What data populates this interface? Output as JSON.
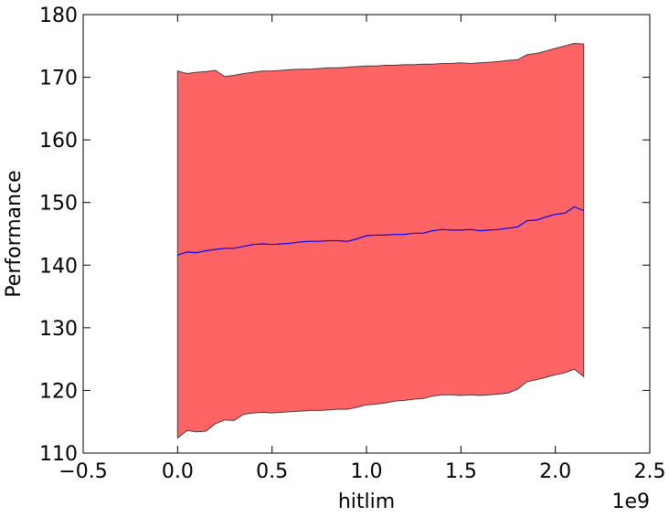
{
  "chart_data": {
    "type": "area",
    "xlabel": "hitlim",
    "ylabel": "Performance",
    "x_offset_label": "1e9",
    "xlim": [
      -0.5,
      2.5
    ],
    "ylim": [
      110,
      180
    ],
    "x_ticks": [
      -0.5,
      0.0,
      0.5,
      1.0,
      1.5,
      2.0,
      2.5
    ],
    "x_tick_labels": [
      "−0.5",
      "0.0",
      "0.5",
      "1.0",
      "1.5",
      "2.0",
      "2.5"
    ],
    "y_ticks": [
      110,
      120,
      130,
      140,
      150,
      160,
      170,
      180
    ],
    "y_tick_labels": [
      "110",
      "120",
      "130",
      "140",
      "150",
      "160",
      "170",
      "180"
    ],
    "grid": false,
    "colors": {
      "band_fill": "#ff6464",
      "band_edge": "#4a3a3a",
      "mean_line": "#0000ff"
    },
    "series": [
      {
        "role": "mean",
        "x": [
          0.0,
          0.05,
          0.1,
          0.15,
          0.2,
          0.25,
          0.3,
          0.35,
          0.4,
          0.45,
          0.5,
          0.55,
          0.6,
          0.65,
          0.7,
          0.75,
          0.8,
          0.85,
          0.9,
          0.95,
          1.0,
          1.05,
          1.1,
          1.15,
          1.2,
          1.25,
          1.3,
          1.35,
          1.4,
          1.45,
          1.5,
          1.55,
          1.6,
          1.65,
          1.7,
          1.75,
          1.8,
          1.85,
          1.9,
          1.95,
          2.0,
          2.05,
          2.1,
          2.15
        ],
        "values": [
          141.6,
          142.1,
          142.0,
          142.3,
          142.5,
          142.7,
          142.7,
          143.0,
          143.3,
          143.4,
          143.3,
          143.4,
          143.5,
          143.7,
          143.8,
          143.8,
          143.9,
          143.9,
          143.8,
          144.2,
          144.7,
          144.8,
          144.8,
          144.9,
          144.9,
          145.1,
          145.1,
          145.5,
          145.7,
          145.6,
          145.6,
          145.7,
          145.5,
          145.6,
          145.7,
          145.9,
          146.1,
          147.1,
          147.2,
          147.7,
          148.1,
          148.3,
          149.3,
          148.7
        ]
      },
      {
        "role": "upper",
        "x": [
          0.0,
          0.05,
          0.1,
          0.15,
          0.2,
          0.25,
          0.3,
          0.35,
          0.4,
          0.45,
          0.5,
          0.55,
          0.6,
          0.65,
          0.7,
          0.75,
          0.8,
          0.85,
          0.9,
          0.95,
          1.0,
          1.05,
          1.1,
          1.15,
          1.2,
          1.25,
          1.3,
          1.35,
          1.4,
          1.45,
          1.5,
          1.55,
          1.6,
          1.65,
          1.7,
          1.75,
          1.8,
          1.85,
          1.9,
          1.95,
          2.0,
          2.05,
          2.1,
          2.15
        ],
        "values": [
          171.0,
          170.6,
          170.8,
          170.9,
          171.1,
          170.1,
          170.3,
          170.6,
          170.8,
          171.0,
          171.0,
          171.1,
          171.2,
          171.3,
          171.3,
          171.4,
          171.5,
          171.5,
          171.6,
          171.7,
          171.8,
          171.8,
          171.9,
          171.9,
          172.0,
          172.0,
          172.1,
          172.1,
          172.2,
          172.2,
          172.3,
          172.2,
          172.3,
          172.4,
          172.5,
          172.7,
          172.8,
          173.6,
          173.8,
          174.2,
          174.6,
          175.0,
          175.4,
          175.3
        ]
      },
      {
        "role": "lower",
        "x": [
          0.0,
          0.05,
          0.1,
          0.15,
          0.2,
          0.25,
          0.3,
          0.35,
          0.4,
          0.45,
          0.5,
          0.55,
          0.6,
          0.65,
          0.7,
          0.75,
          0.8,
          0.85,
          0.9,
          0.95,
          1.0,
          1.05,
          1.1,
          1.15,
          1.2,
          1.25,
          1.3,
          1.35,
          1.4,
          1.45,
          1.5,
          1.55,
          1.6,
          1.65,
          1.7,
          1.75,
          1.8,
          1.85,
          1.9,
          1.95,
          2.0,
          2.05,
          2.1,
          2.15
        ],
        "values": [
          112.4,
          113.6,
          113.4,
          113.5,
          114.7,
          115.3,
          115.2,
          116.2,
          116.4,
          116.5,
          116.4,
          116.5,
          116.6,
          116.7,
          116.8,
          116.8,
          116.9,
          117.0,
          117.0,
          117.3,
          117.7,
          117.8,
          118.0,
          118.3,
          118.4,
          118.6,
          118.7,
          119.1,
          119.3,
          119.3,
          119.2,
          119.3,
          119.2,
          119.3,
          119.4,
          119.6,
          120.2,
          121.4,
          121.7,
          122.1,
          122.5,
          122.8,
          123.4,
          122.2
        ]
      }
    ]
  }
}
